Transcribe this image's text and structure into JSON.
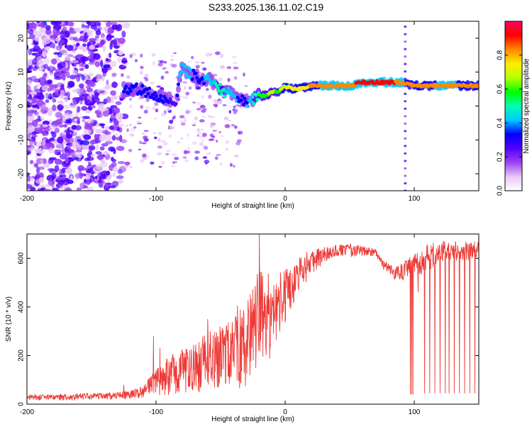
{
  "title": "S233.2025.136.11.02.C19",
  "chart_data": [
    {
      "type": "heatmap",
      "title": "S233.2025.136.11.02.C19",
      "xlabel": "Height of straight line (km)",
      "ylabel": "Frequency (Hz)",
      "xlim": [
        -200,
        150
      ],
      "ylim": [
        -25,
        25
      ],
      "xticks": [
        -200,
        -100,
        0,
        100
      ],
      "yticks": [
        -20,
        -10,
        0,
        10,
        20
      ],
      "grid": false,
      "colorbar": {
        "label": "Normalized spectral amplitude",
        "range": [
          0,
          1
        ],
        "ticks": [
          "0.0",
          "0.2",
          "0.4",
          "0.6",
          "0.8"
        ],
        "colors": [
          "#ffffff",
          "#e9c6f7",
          "#9a42f4",
          "#5200ff",
          "#0000ff",
          "#00c8ff",
          "#00ffb0",
          "#00ff00",
          "#b8ff00",
          "#ffee00",
          "#ff8800",
          "#ff0000",
          "#ff0060"
        ]
      },
      "ridge": {
        "x": [
          -125,
          -115,
          -105,
          -98,
          -90,
          -85,
          -80,
          -75,
          -70,
          -65,
          -60,
          -55,
          -50,
          -45,
          -40,
          -35,
          -30,
          -25,
          -20,
          -15,
          -10,
          -5,
          0,
          5,
          10,
          20,
          30,
          40,
          50,
          60,
          70,
          80,
          90,
          100,
          110,
          120,
          130,
          140,
          150
        ],
        "freq": [
          5,
          5,
          4,
          3,
          2,
          1,
          11,
          10,
          9,
          8,
          8,
          7,
          5,
          4,
          3,
          2,
          1,
          2,
          3,
          3,
          4,
          4,
          6,
          5,
          5,
          6,
          6,
          6,
          6,
          7,
          7,
          7,
          7,
          6,
          6,
          6,
          6,
          6,
          6
        ],
        "amplitude": [
          0.3,
          0.35,
          0.35,
          0.3,
          0.3,
          0.25,
          0.45,
          0.4,
          0.35,
          0.35,
          0.4,
          0.45,
          0.5,
          0.45,
          0.4,
          0.35,
          0.35,
          0.45,
          0.55,
          0.6,
          0.65,
          0.6,
          0.7,
          0.75,
          0.75,
          0.8,
          0.85,
          0.85,
          0.85,
          0.9,
          0.95,
          0.9,
          0.85,
          0.8,
          0.8,
          0.85,
          0.85,
          0.8,
          0.8
        ]
      },
      "vertical_artifact_x": 93
    },
    {
      "type": "line",
      "xlabel": "Height of straight line (km)",
      "ylabel": "SNR (10 * v/v)",
      "xlim": [
        -200,
        150
      ],
      "ylim": [
        0,
        700
      ],
      "xticks": [
        -200,
        -100,
        0,
        100
      ],
      "yticks": [
        0,
        200,
        400,
        600
      ],
      "grid": false,
      "line_color": "#ee3a36",
      "envelope": {
        "x": [
          -200,
          -180,
          -160,
          -140,
          -120,
          -110,
          -100,
          -90,
          -80,
          -70,
          -60,
          -50,
          -40,
          -30,
          -25,
          -20,
          -15,
          -10,
          -5,
          0,
          5,
          10,
          20,
          30,
          40,
          50,
          60,
          70,
          75,
          80,
          85,
          90,
          95,
          100,
          105,
          110,
          120,
          130,
          140,
          150
        ],
        "low": [
          15,
          15,
          15,
          18,
          20,
          25,
          30,
          35,
          40,
          45,
          50,
          55,
          60,
          70,
          80,
          100,
          150,
          200,
          280,
          330,
          400,
          450,
          520,
          580,
          600,
          600,
          610,
          600,
          560,
          530,
          510,
          500,
          520,
          540,
          530,
          540,
          580,
          590,
          590,
          600
        ],
        "high": [
          40,
          40,
          45,
          45,
          55,
          75,
          150,
          200,
          220,
          250,
          300,
          330,
          350,
          430,
          480,
          560,
          560,
          520,
          540,
          560,
          560,
          600,
          640,
          650,
          660,
          660,
          650,
          640,
          600,
          580,
          560,
          580,
          600,
          620,
          640,
          660,
          670,
          670,
          670,
          670
        ]
      },
      "spikes": [
        {
          "x": -125,
          "y": 80
        },
        {
          "x": -102,
          "y": 280
        },
        {
          "x": -97,
          "y": 230
        },
        {
          "x": -80,
          "y": 225
        },
        {
          "x": -60,
          "y": 350
        },
        {
          "x": -52,
          "y": 280
        },
        {
          "x": -37,
          "y": 405
        },
        {
          "x": -20,
          "y": 700
        },
        {
          "x": 97,
          "y": 640
        }
      ],
      "dropouts": [
        {
          "x": 97,
          "y": 40
        },
        {
          "x": 98,
          "y": 40
        },
        {
          "x": 99,
          "y": 40
        },
        {
          "x": 103,
          "y": 460
        },
        {
          "x": 108,
          "y": 45
        },
        {
          "x": 112,
          "y": 45
        },
        {
          "x": 116,
          "y": 45
        },
        {
          "x": 120,
          "y": 45
        },
        {
          "x": 124,
          "y": 45
        },
        {
          "x": 127,
          "y": 45
        },
        {
          "x": 131,
          "y": 45
        },
        {
          "x": 135,
          "y": 45
        },
        {
          "x": 139,
          "y": 45
        },
        {
          "x": 143,
          "y": 45
        },
        {
          "x": 147,
          "y": 45
        }
      ]
    }
  ]
}
